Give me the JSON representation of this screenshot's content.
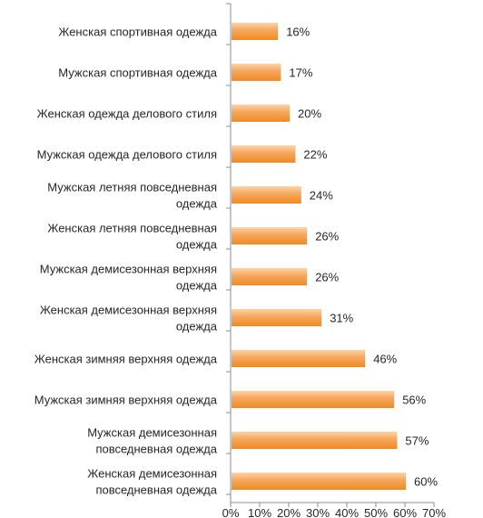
{
  "chart_data": {
    "type": "bar",
    "orientation": "horizontal",
    "categories": [
      [
        "Женская спортивная одежда"
      ],
      [
        "Мужская спортивная одежда"
      ],
      [
        "Женская одежда делового стиля"
      ],
      [
        "Мужская одежда делового стиля"
      ],
      [
        "Мужская летняя повседневная",
        "одежда"
      ],
      [
        "Женская летняя повседневная",
        "одежда"
      ],
      [
        "Мужская демисезонная верхняя",
        "одежда"
      ],
      [
        "Женская демисезонная верхняя",
        "одежда"
      ],
      [
        "Женская зимняя верхняя одежда"
      ],
      [
        "Мужская зимняя верхняя одежда"
      ],
      [
        "Мужская  демисезонная",
        "повседневная одежда"
      ],
      [
        "Женская  демисезонная",
        "повседневная одежда"
      ]
    ],
    "values": [
      16,
      17,
      20,
      22,
      24,
      26,
      26,
      31,
      46,
      56,
      57,
      60
    ],
    "value_labels": [
      "16%",
      "17%",
      "20%",
      "22%",
      "24%",
      "26%",
      "26%",
      "31%",
      "46%",
      "56%",
      "57%",
      "60%"
    ],
    "xlim": [
      0,
      70
    ],
    "x_ticks": [
      "0%",
      "10%",
      "20%",
      "30%",
      "40%",
      "50%",
      "60%",
      "70%"
    ],
    "grid": false,
    "bar_color": "#F5A65B",
    "bar_gradient_light": "#FFD3A6",
    "bar_gradient_dark": "#F08A24"
  }
}
